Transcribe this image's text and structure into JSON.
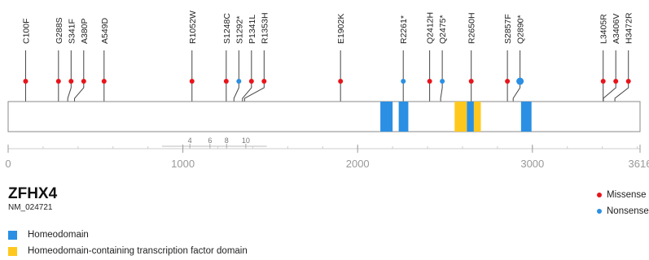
{
  "gene": {
    "name": "ZFHX4",
    "transcript": "NM_024721"
  },
  "protein": {
    "length": 3616
  },
  "axis": {
    "ticks": [
      0,
      1000,
      2000,
      3000,
      3616
    ]
  },
  "colors": {
    "missense": "#e8141b",
    "nonsense": "#2b8fe3",
    "homeodomain": "#2b8fe3",
    "tf_domain": "#ffc81f"
  },
  "domains": [
    {
      "type": "homeodomain",
      "start": 2130,
      "end": 2200
    },
    {
      "type": "homeodomain",
      "start": 2235,
      "end": 2290
    },
    {
      "type": "tf_domain",
      "start": 2555,
      "end": 2625
    },
    {
      "type": "homeodomain",
      "start": 2625,
      "end": 2665
    },
    {
      "type": "tf_domain",
      "start": 2665,
      "end": 2705
    },
    {
      "type": "homeodomain",
      "start": 2935,
      "end": 2995
    }
  ],
  "mutations": [
    {
      "label": "C100F",
      "position": 100,
      "type": "missense"
    },
    {
      "label": "G288S",
      "position": 288,
      "type": "missense"
    },
    {
      "label": "S341F",
      "position": 341,
      "type": "missense"
    },
    {
      "label": "A380P",
      "position": 380,
      "type": "missense"
    },
    {
      "label": "A549D",
      "position": 549,
      "type": "missense"
    },
    {
      "label": "R1052W",
      "position": 1052,
      "type": "missense"
    },
    {
      "label": "S1248C",
      "position": 1248,
      "type": "missense"
    },
    {
      "label": "S1292*",
      "position": 1292,
      "type": "nonsense"
    },
    {
      "label": "P1341L",
      "position": 1341,
      "type": "missense"
    },
    {
      "label": "R1353H",
      "position": 1353,
      "type": "missense"
    },
    {
      "label": "E1902K",
      "position": 1902,
      "type": "missense"
    },
    {
      "label": "R2261*",
      "position": 2261,
      "type": "nonsense"
    },
    {
      "label": "Q2412H",
      "position": 2412,
      "type": "missense"
    },
    {
      "label": "Q2475*",
      "position": 2475,
      "type": "nonsense"
    },
    {
      "label": "R2650H",
      "position": 2650,
      "type": "missense"
    },
    {
      "label": "S2857F",
      "position": 2857,
      "type": "missense"
    },
    {
      "label": "Q2890*",
      "position": 2890,
      "type": "nonsense"
    },
    {
      "label": "L3405R",
      "position": 3405,
      "type": "missense"
    },
    {
      "label": "A3406V",
      "position": 3406,
      "type": "missense"
    },
    {
      "label": "H3472R",
      "position": 3472,
      "type": "missense"
    }
  ],
  "exons": [
    {
      "label": "4",
      "position": 1040
    },
    {
      "label": "6",
      "position": 1155
    },
    {
      "label": "8",
      "position": 1250
    },
    {
      "label": "10",
      "position": 1360
    }
  ],
  "legend": {
    "domains": [
      {
        "type": "homeodomain",
        "label": "Homeodomain"
      },
      {
        "type": "tf_domain",
        "label": "Homeodomain-containing transcription factor domain"
      }
    ],
    "mutations": [
      {
        "type": "missense",
        "label": "Missense"
      },
      {
        "type": "nonsense",
        "label": "Nonsense"
      }
    ]
  }
}
